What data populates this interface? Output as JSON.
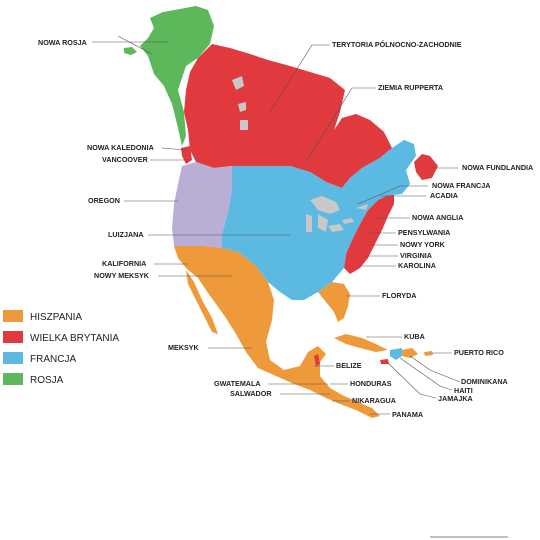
{
  "colors": {
    "spain": "#ee9a3a",
    "britain": "#e0393e",
    "france": "#5bb9e2",
    "russia": "#5cb85a",
    "disputed": "#b9afd6",
    "lakes": "#c8c8c8",
    "ocean": "#ffffff"
  },
  "legend": [
    {
      "label": "HISZPANIA",
      "color": "#ee9a3a"
    },
    {
      "label": "WIELKA BRYTANIA",
      "color": "#e0393e"
    },
    {
      "label": "FRANCJA",
      "color": "#5bb9e2"
    },
    {
      "label": "ROSJA",
      "color": "#5cb85a"
    }
  ],
  "labels": {
    "nowa_rosja": "NOWA ROSJA",
    "terytoria": "TERYTORIA PÓLNOCNO-ZACHODNIE",
    "ziemia_rupperta": "ZIEMIA RUPPERTA",
    "nowa_kaledonia": "NOWA KALEDONIA",
    "vancouver": "VANCOOVER",
    "nowa_fundlandia": "NOWA FUNDLANDIA",
    "nowa_francja": "NOWA FRANCJA",
    "acadia": "ACADIA",
    "oregon": "OREGON",
    "nowa_anglia": "NOWA ANGLIA",
    "luizjana": "LUIZJANA",
    "pensylwania": "PENSYLWANIA",
    "nowy_york": "NOWY YORK",
    "virginia": "VIRGINIA",
    "kalifornia": "KALIFORNIA",
    "karolina": "KAROLINA",
    "nowy_meksyk": "NOWY MEKSYK",
    "floryda": "FLORYDA",
    "kuba": "KUBA",
    "meksyk": "MEKSYK",
    "puerto_rico": "PUERTO RICO",
    "belize": "BELIZE",
    "dominikana": "DOMINIKANA",
    "gwatemala": "GWATEMALA",
    "honduras": "HONDURAS",
    "haiti": "HAITI",
    "salwador": "SALWADOR",
    "jamajka": "JAMAJKA",
    "nikaragua": "NIKARAGUA",
    "panama": "PANAMA"
  }
}
